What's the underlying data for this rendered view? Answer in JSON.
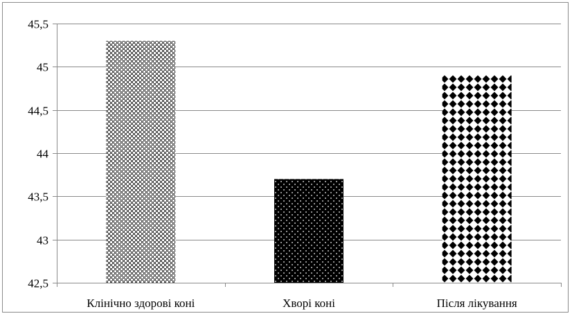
{
  "chart_data": {
    "type": "bar",
    "categories": [
      "Клінічно здорові коні",
      "Хворі коні",
      "Після лікування"
    ],
    "values": [
      45.3,
      43.7,
      44.9
    ],
    "title": "",
    "xlabel": "",
    "ylabel": "",
    "ylim": [
      42.5,
      45.5
    ],
    "yticks": [
      42.5,
      43,
      43.5,
      44,
      44.5,
      45,
      45.5
    ],
    "ytick_labels": [
      "42,5",
      "43",
      "43,5",
      "44",
      "44,5",
      "45",
      "45,5"
    ],
    "grid": "horizontal major gridlines",
    "legend": "none",
    "bar_fills": [
      "fine-checker-pattern",
      "black-with-white-dots-pattern",
      "black-diamond-pattern"
    ],
    "colors": {
      "axis": "#8a8a8a",
      "grid": "#8a8a8a",
      "ink": "#000000",
      "paper": "#ffffff"
    }
  }
}
